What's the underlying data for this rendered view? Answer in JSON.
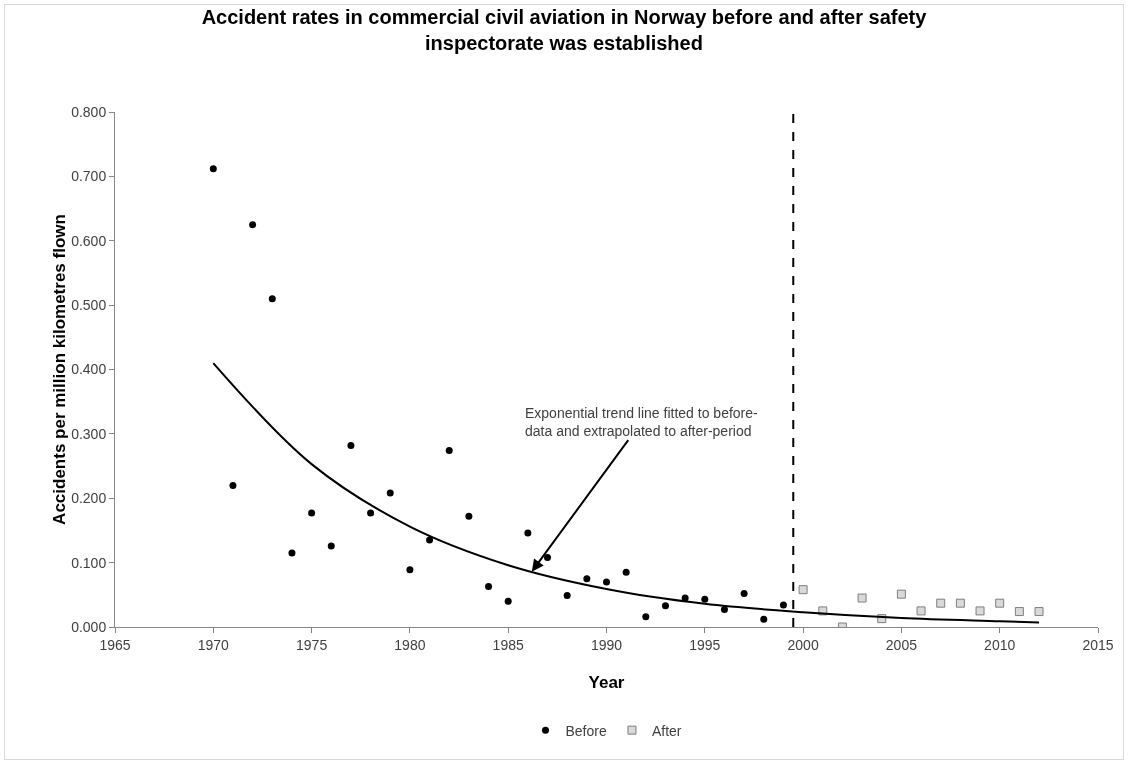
{
  "chart_data": {
    "type": "scatter",
    "title": "Accident rates in commercial civil aviation in Norway before and after safety\ninspectorate was established",
    "xlabel": "Year",
    "ylabel": "Accidents per million kilometres flown",
    "xlim": [
      1965,
      2015
    ],
    "xticks": [
      1965,
      1970,
      1975,
      1980,
      1985,
      1990,
      1995,
      2000,
      2005,
      2010,
      2015
    ],
    "ylim": [
      0,
      0.8
    ],
    "yticks": [
      {
        "value": 0,
        "label": "0.000"
      },
      {
        "value": 0.1,
        "label": "0.100"
      },
      {
        "value": 0.2,
        "label": "0.200"
      },
      {
        "value": 0.3,
        "label": "0.300"
      },
      {
        "value": 0.4,
        "label": "0.400"
      },
      {
        "value": 0.5,
        "label": "0.500"
      },
      {
        "value": 0.6,
        "label": "0.600"
      },
      {
        "value": 0.7,
        "label": "0.700"
      },
      {
        "value": 0.8,
        "label": "0.800"
      }
    ],
    "legend": "bottom",
    "series": [
      {
        "name": "Before",
        "color": "#000000",
        "marker": "circle",
        "x": [
          1970,
          1971,
          1972,
          1973,
          1974,
          1975,
          1976,
          1977,
          1978,
          1979,
          1980,
          1981,
          1982,
          1983,
          1984,
          1985,
          1986,
          1987,
          1988,
          1989,
          1990,
          1991,
          1992,
          1993,
          1994,
          1995,
          1996,
          1997,
          1998,
          1999
        ],
        "values": [
          0.712,
          0.22,
          0.625,
          0.51,
          0.115,
          0.177,
          0.126,
          0.282,
          0.177,
          0.208,
          0.089,
          0.135,
          0.274,
          0.172,
          0.063,
          0.04,
          0.146,
          0.108,
          0.049,
          0.075,
          0.07,
          0.085,
          0.016,
          0.033,
          0.045,
          0.043,
          0.027,
          0.052,
          0.012,
          0.034
        ]
      },
      {
        "name": "After",
        "color": "#d9d9d9",
        "marker": "square",
        "x": [
          2000,
          2001,
          2002,
          2003,
          2004,
          2005,
          2006,
          2007,
          2008,
          2009,
          2010,
          2011,
          2012
        ],
        "values": [
          0.058,
          0.025,
          0.0,
          0.045,
          0.013,
          0.051,
          0.025,
          0.037,
          0.037,
          0.025,
          0.037,
          0.024,
          0.024
        ]
      },
      {
        "type": "line",
        "color": "#000000",
        "marker": "none",
        "x": [
          1970,
          1975,
          1980,
          1985,
          1990,
          1995,
          2000,
          2005,
          2010,
          2012
        ],
        "values": [
          0.41,
          0.253,
          0.156,
          0.096,
          0.059,
          0.036,
          0.023,
          0.014,
          0.009,
          0.007
        ]
      }
    ],
    "ref_lines": [
      {
        "axis": "x",
        "value": 1999.5,
        "color": "#000000",
        "line_style": "dashed"
      }
    ],
    "annotations": [
      {
        "text": "Exponential trend line fitted to before-\ndata and extrapolated to after-period",
        "x": 1986.2,
        "y": 0.086
      }
    ]
  }
}
